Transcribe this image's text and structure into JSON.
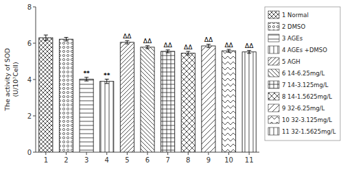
{
  "chart_data": {
    "type": "bar",
    "categories": [
      "1",
      "2",
      "3",
      "4",
      "5",
      "6",
      "7",
      "8",
      "9",
      "10",
      "11"
    ],
    "values": [
      6.3,
      6.22,
      4.02,
      3.9,
      6.05,
      5.78,
      5.55,
      5.45,
      5.85,
      5.58,
      5.52
    ],
    "errors": [
      0.15,
      0.1,
      0.1,
      0.12,
      0.09,
      0.08,
      0.08,
      0.1,
      0.09,
      0.08,
      0.08
    ],
    "ylabel": "The activity of SOD\n(U/10⁷Cell)",
    "ylim": [
      0,
      8
    ],
    "yticks": [
      0,
      2,
      4,
      6,
      8
    ],
    "color": "white",
    "legend": "right",
    "legend_labels": [
      "1 Normal",
      "2 DMSO",
      "3 AGEs",
      "4 AGEs +DMSO",
      "5 AGH",
      "6 14-6.25mg/L",
      "7 14-3.125mg/L",
      "8 14-1.5625mg/L",
      "9 32-6.25mg/L",
      "10 32-3.125mg/L",
      "11 32-1.5625mg/L"
    ],
    "annotations": [
      {
        "text": "**",
        "category": "3",
        "y": 4.2
      },
      {
        "text": "**",
        "category": "4",
        "y": 4.08
      },
      {
        "text": "ΔΔ",
        "category": "5",
        "y": 6.22
      },
      {
        "text": "ΔΔ",
        "category": "6",
        "y": 5.96
      },
      {
        "text": "ΔΔ",
        "category": "7",
        "y": 5.72
      },
      {
        "text": "ΔΔ",
        "category": "8",
        "y": 5.63
      },
      {
        "text": "ΔΔ",
        "category": "9",
        "y": 6.02
      },
      {
        "text": "ΔΔ",
        "category": "10",
        "y": 5.74
      },
      {
        "text": "ΔΔ",
        "category": "11",
        "y": 5.7
      }
    ]
  }
}
